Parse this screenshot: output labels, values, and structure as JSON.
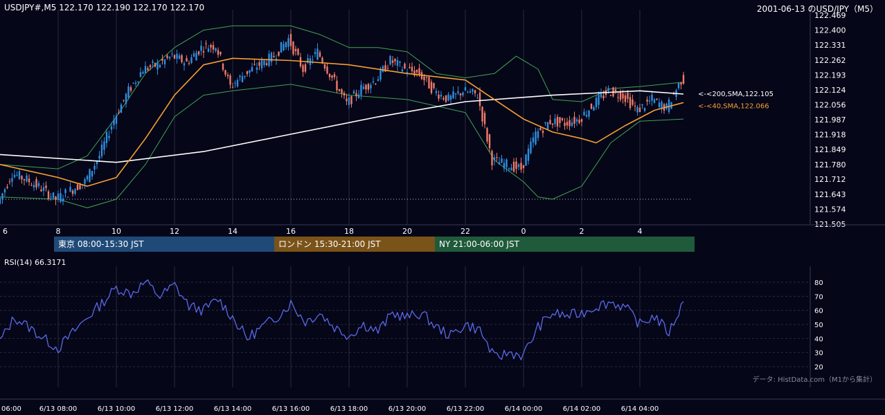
{
  "header": {
    "symbol_info": "USDJPY#,M5 122.170 122.190 122.170 122.170",
    "title": "2001-06-13 のUSD/JPY（M5）"
  },
  "colors": {
    "background": "#060619",
    "grid": "#2a2a3e",
    "candle_up": "#2f8fe0",
    "candle_down": "#f07c68",
    "sma200": "#ffffff",
    "sma40": "#f5a030",
    "bollinger": "#3fa54f",
    "rsi": "#5a6ae8",
    "session_tokyo": "#1f4a78",
    "session_london": "#7a5318",
    "session_ny": "#1f5a3a"
  },
  "price_axis_labels": [
    "122.469",
    "122.400",
    "122.331",
    "122.262",
    "122.193",
    "122.124",
    "122.056",
    "121.987",
    "121.918",
    "121.849",
    "121.780",
    "121.712",
    "121.643",
    "121.574",
    "121.505"
  ],
  "hour_labels": [
    "6",
    "8",
    "10",
    "12",
    "14",
    "16",
    "18",
    "20",
    "22",
    "0",
    "2",
    "4"
  ],
  "bottom_time_labels": [
    "06:00",
    "6/13 08:00",
    "6/13 10:00",
    "6/13 12:00",
    "6/13 14:00",
    "6/13 16:00",
    "6/13 18:00",
    "6/13 20:00",
    "6/13 22:00",
    "6/14 00:00",
    "6/14 02:00",
    "6/14 04:00"
  ],
  "sessions": [
    {
      "label": "東京 08:00-15:30 JST"
    },
    {
      "label": "ロンドン 15:30-21:00 JST"
    },
    {
      "label": "NY 21:00-06:00 JST"
    }
  ],
  "annotations": {
    "sma200": "<-<200,SMA,122.105",
    "sma40": "<-<40,SMA,122.066"
  },
  "rsi": {
    "label": "RSI(14) 66.3171",
    "axis_labels": [
      "80",
      "70",
      "60",
      "50",
      "40",
      "30",
      "20"
    ]
  },
  "credit": "データ: HistData.com（M1から集計）",
  "chart_data": [
    {
      "type": "candlestick",
      "title": "2001-06-13 のUSD/JPY（M5）",
      "symbol": "USDJPY#,M5",
      "timeframe": "M5",
      "ylim": [
        121.505,
        122.469
      ],
      "x_range": [
        "2001-06-13 06:00",
        "2001-06-14 05:30"
      ],
      "last_ohlc": {
        "open": 122.17,
        "high": 122.19,
        "low": 122.17,
        "close": 122.17
      },
      "price_path": [
        {
          "x": "06:00",
          "y": 121.6
        },
        {
          "x": "06:30",
          "y": 121.74
        },
        {
          "x": "07:00",
          "y": 121.71
        },
        {
          "x": "07:30",
          "y": 121.67
        },
        {
          "x": "08:00",
          "y": 121.62
        },
        {
          "x": "08:30",
          "y": 121.66
        },
        {
          "x": "09:00",
          "y": 121.7
        },
        {
          "x": "09:30",
          "y": 121.82
        },
        {
          "x": "10:00",
          "y": 121.99
        },
        {
          "x": "10:30",
          "y": 122.12
        },
        {
          "x": "11:00",
          "y": 122.22
        },
        {
          "x": "11:30",
          "y": 122.24
        },
        {
          "x": "12:00",
          "y": 122.28
        },
        {
          "x": "12:30",
          "y": 122.25
        },
        {
          "x": "13:00",
          "y": 122.32
        },
        {
          "x": "13:30",
          "y": 122.33
        },
        {
          "x": "14:00",
          "y": 122.14
        },
        {
          "x": "14:30",
          "y": 122.2
        },
        {
          "x": "15:00",
          "y": 122.24
        },
        {
          "x": "15:30",
          "y": 122.28
        },
        {
          "x": "16:00",
          "y": 122.36
        },
        {
          "x": "16:30",
          "y": 122.22
        },
        {
          "x": "17:00",
          "y": 122.3
        },
        {
          "x": "17:30",
          "y": 122.18
        },
        {
          "x": "18:00",
          "y": 122.06
        },
        {
          "x": "18:30",
          "y": 122.13
        },
        {
          "x": "19:00",
          "y": 122.17
        },
        {
          "x": "19:30",
          "y": 122.26
        },
        {
          "x": "20:00",
          "y": 122.22
        },
        {
          "x": "20:30",
          "y": 122.2
        },
        {
          "x": "21:00",
          "y": 122.12
        },
        {
          "x": "21:30",
          "y": 122.08
        },
        {
          "x": "22:00",
          "y": 122.12
        },
        {
          "x": "22:30",
          "y": 122.1
        },
        {
          "x": "23:00",
          "y": 121.8
        },
        {
          "x": "23:30",
          "y": 121.78
        },
        {
          "x": "00:00",
          "y": 121.76
        },
        {
          "x": "00:30",
          "y": 121.92
        },
        {
          "x": "01:00",
          "y": 121.98
        },
        {
          "x": "01:30",
          "y": 121.97
        },
        {
          "x": "02:00",
          "y": 121.99
        },
        {
          "x": "02:30",
          "y": 122.06
        },
        {
          "x": "03:00",
          "y": 122.12
        },
        {
          "x": "03:30",
          "y": 122.1
        },
        {
          "x": "04:00",
          "y": 122.03
        },
        {
          "x": "04:30",
          "y": 122.08
        },
        {
          "x": "05:00",
          "y": 122.04
        },
        {
          "x": "05:30",
          "y": 122.17
        }
      ],
      "sma200_path": [
        {
          "x": "06:00",
          "y": 121.826
        },
        {
          "x": "10:00",
          "y": 121.79
        },
        {
          "x": "13:00",
          "y": 121.84
        },
        {
          "x": "16:00",
          "y": 121.92
        },
        {
          "x": "19:00",
          "y": 122.0
        },
        {
          "x": "22:00",
          "y": 122.07
        },
        {
          "x": "01:00",
          "y": 122.1
        },
        {
          "x": "04:00",
          "y": 122.12
        },
        {
          "x": "05:30",
          "y": 122.105
        }
      ],
      "sma40_path": [
        {
          "x": "06:00",
          "y": 121.78
        },
        {
          "x": "08:00",
          "y": 121.72
        },
        {
          "x": "09:00",
          "y": 121.68
        },
        {
          "x": "10:00",
          "y": 121.72
        },
        {
          "x": "11:00",
          "y": 121.9
        },
        {
          "x": "12:00",
          "y": 122.1
        },
        {
          "x": "13:00",
          "y": 122.24
        },
        {
          "x": "14:00",
          "y": 122.27
        },
        {
          "x": "16:00",
          "y": 122.26
        },
        {
          "x": "18:00",
          "y": 122.24
        },
        {
          "x": "20:00",
          "y": 122.2
        },
        {
          "x": "22:00",
          "y": 122.17
        },
        {
          "x": "23:00",
          "y": 122.08
        },
        {
          "x": "00:00",
          "y": 121.99
        },
        {
          "x": "01:00",
          "y": 121.93
        },
        {
          "x": "02:00",
          "y": 121.9
        },
        {
          "x": "02:30",
          "y": 121.88
        },
        {
          "x": "03:30",
          "y": 121.96
        },
        {
          "x": "04:30",
          "y": 122.03
        },
        {
          "x": "05:30",
          "y": 122.066
        }
      ],
      "bollinger_upper": [
        {
          "x": "06:00",
          "y": 121.78
        },
        {
          "x": "08:00",
          "y": 121.76
        },
        {
          "x": "09:00",
          "y": 121.82
        },
        {
          "x": "10:00",
          "y": 122.0
        },
        {
          "x": "11:00",
          "y": 122.2
        },
        {
          "x": "12:00",
          "y": 122.32
        },
        {
          "x": "13:00",
          "y": 122.4
        },
        {
          "x": "14:00",
          "y": 122.42
        },
        {
          "x": "16:00",
          "y": 122.42
        },
        {
          "x": "17:00",
          "y": 122.38
        },
        {
          "x": "18:00",
          "y": 122.32
        },
        {
          "x": "19:00",
          "y": 122.32
        },
        {
          "x": "20:00",
          "y": 122.3
        },
        {
          "x": "21:00",
          "y": 122.2
        },
        {
          "x": "22:00",
          "y": 122.18
        },
        {
          "x": "23:00",
          "y": 122.2
        },
        {
          "x": "23:45",
          "y": 122.28
        },
        {
          "x": "00:30",
          "y": 122.22
        },
        {
          "x": "01:00",
          "y": 122.08
        },
        {
          "x": "02:00",
          "y": 122.07
        },
        {
          "x": "03:00",
          "y": 122.13
        },
        {
          "x": "04:00",
          "y": 122.14
        },
        {
          "x": "05:30",
          "y": 122.16
        }
      ],
      "bollinger_lower": [
        {
          "x": "06:00",
          "y": 121.63
        },
        {
          "x": "08:00",
          "y": 121.62
        },
        {
          "x": "09:00",
          "y": 121.58
        },
        {
          "x": "10:00",
          "y": 121.62
        },
        {
          "x": "11:00",
          "y": 121.78
        },
        {
          "x": "12:00",
          "y": 122.0
        },
        {
          "x": "13:00",
          "y": 122.1
        },
        {
          "x": "14:00",
          "y": 122.12
        },
        {
          "x": "16:00",
          "y": 122.15
        },
        {
          "x": "18:00",
          "y": 122.1
        },
        {
          "x": "20:00",
          "y": 122.08
        },
        {
          "x": "22:00",
          "y": 122.02
        },
        {
          "x": "23:00",
          "y": 121.8
        },
        {
          "x": "00:00",
          "y": 121.7
        },
        {
          "x": "00:30",
          "y": 121.63
        },
        {
          "x": "01:00",
          "y": 121.62
        },
        {
          "x": "02:00",
          "y": 121.68
        },
        {
          "x": "03:00",
          "y": 121.88
        },
        {
          "x": "04:00",
          "y": 121.98
        },
        {
          "x": "05:30",
          "y": 121.99
        }
      ],
      "dotted_level": 121.62
    },
    {
      "type": "line",
      "title": "RSI(14) 66.3171",
      "ylim": [
        20,
        80
      ],
      "series": [
        {
          "name": "RSI(14)",
          "points": [
            {
              "x": "06:00",
              "y": 38
            },
            {
              "x": "06:30",
              "y": 55
            },
            {
              "x": "07:00",
              "y": 48
            },
            {
              "x": "07:30",
              "y": 40
            },
            {
              "x": "08:00",
              "y": 33
            },
            {
              "x": "08:30",
              "y": 44
            },
            {
              "x": "09:00",
              "y": 55
            },
            {
              "x": "09:30",
              "y": 65
            },
            {
              "x": "10:00",
              "y": 76
            },
            {
              "x": "10:30",
              "y": 72
            },
            {
              "x": "11:00",
              "y": 80
            },
            {
              "x": "11:30",
              "y": 70
            },
            {
              "x": "12:00",
              "y": 78
            },
            {
              "x": "12:30",
              "y": 63
            },
            {
              "x": "13:00",
              "y": 60
            },
            {
              "x": "13:30",
              "y": 68
            },
            {
              "x": "14:00",
              "y": 55
            },
            {
              "x": "14:30",
              "y": 40
            },
            {
              "x": "15:00",
              "y": 48
            },
            {
              "x": "15:30",
              "y": 55
            },
            {
              "x": "16:00",
              "y": 65
            },
            {
              "x": "16:30",
              "y": 52
            },
            {
              "x": "17:00",
              "y": 58
            },
            {
              "x": "17:30",
              "y": 48
            },
            {
              "x": "18:00",
              "y": 42
            },
            {
              "x": "18:30",
              "y": 50
            },
            {
              "x": "19:00",
              "y": 45
            },
            {
              "x": "19:30",
              "y": 58
            },
            {
              "x": "20:00",
              "y": 55
            },
            {
              "x": "20:30",
              "y": 58
            },
            {
              "x": "21:00",
              "y": 48
            },
            {
              "x": "21:30",
              "y": 42
            },
            {
              "x": "22:00",
              "y": 50
            },
            {
              "x": "22:30",
              "y": 46
            },
            {
              "x": "23:00",
              "y": 26
            },
            {
              "x": "23:30",
              "y": 30
            },
            {
              "x": "00:00",
              "y": 28
            },
            {
              "x": "00:30",
              "y": 48
            },
            {
              "x": "01:00",
              "y": 58
            },
            {
              "x": "01:30",
              "y": 56
            },
            {
              "x": "02:00",
              "y": 58
            },
            {
              "x": "02:30",
              "y": 63
            },
            {
              "x": "03:00",
              "y": 66
            },
            {
              "x": "03:30",
              "y": 62
            },
            {
              "x": "04:00",
              "y": 50
            },
            {
              "x": "04:30",
              "y": 56
            },
            {
              "x": "05:00",
              "y": 44
            },
            {
              "x": "05:30",
              "y": 66.3
            }
          ]
        }
      ]
    }
  ]
}
